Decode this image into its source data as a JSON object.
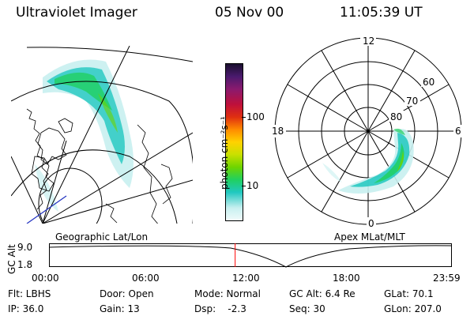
{
  "header": {
    "instrument": "Ultraviolet Imager",
    "date": "05 Nov 00",
    "time": "11:05:39 UT"
  },
  "colorbar": {
    "unit": "photon cm⁻²s⁻¹",
    "ticks": [
      "100",
      "10"
    ],
    "colors": [
      "#1a0f2e",
      "#4a1a6e",
      "#8a1a6e",
      "#c0103a",
      "#e03010",
      "#ff8c00",
      "#ffd200",
      "#c8e000",
      "#6ed400",
      "#20d060",
      "#20c8c0",
      "#c8f0f0"
    ]
  },
  "geo_map": {
    "label": "Geographic Lat/Lon"
  },
  "polar_map": {
    "label": "Apex MLat/MLT",
    "mlt_labels": {
      "top": "12",
      "left": "18",
      "right": "6",
      "bottom": "0"
    },
    "lat_labels": [
      "60",
      "70",
      "80"
    ]
  },
  "altitude_plot": {
    "ylabel": "GC Alt",
    "ytick_top": "9.0",
    "ytick_bottom": "1.8",
    "xticks": [
      "00:00",
      "06:00",
      "12:00",
      "18:00",
      "23:59"
    ],
    "current_marker_hour": 11.09,
    "marker_color": "#ff0000"
  },
  "info": {
    "filter": "Flt: LBHS",
    "door": "Door: Open",
    "mode": "Mode: Normal",
    "gc_alt": "GC Alt: 6.4 Re",
    "glat": "GLat:  70.1",
    "ip": "IP: 36.0",
    "gain": "Gain: 13",
    "dsp": "Dsp:    -2.3",
    "seq": "Seq: 30",
    "glon": "GLon: 207.0"
  }
}
